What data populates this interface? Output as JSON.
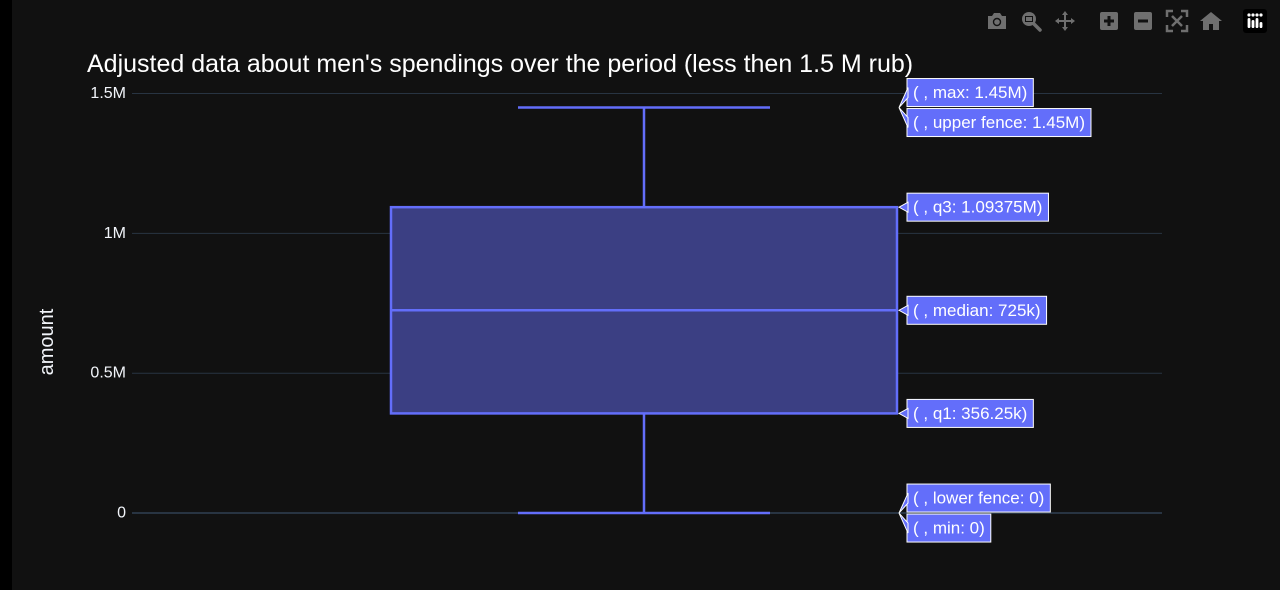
{
  "chart_data": {
    "type": "box",
    "title": "Adjusted data about men's spendings over the period (less then 1.5 M rub)",
    "ylabel": "amount",
    "ylim": [
      -150000,
      1620000
    ],
    "y_ticks": [
      {
        "value": 0,
        "label": "0"
      },
      {
        "value": 500000,
        "label": "0.5M"
      },
      {
        "value": 1000000,
        "label": "1M"
      },
      {
        "value": 1500000,
        "label": "1.5M"
      }
    ],
    "box": {
      "min": 0,
      "lower_fence": 0,
      "q1": 356250,
      "median": 725000,
      "q3": 1093750,
      "upper_fence": 1450000,
      "max": 1450000
    },
    "hover_labels": [
      {
        "key": "max",
        "value": 1450000,
        "text": "( , max: 1.45M)"
      },
      {
        "key": "upper_fence",
        "value": 1450000,
        "text": "( , upper fence: 1.45M)"
      },
      {
        "key": "q3",
        "value": 1093750,
        "text": "( , q3: 1.09375M)"
      },
      {
        "key": "median",
        "value": 725000,
        "text": "( , median: 725k)"
      },
      {
        "key": "q1",
        "value": 356250,
        "text": "( , q1: 356.25k)"
      },
      {
        "key": "lower_fence",
        "value": 0,
        "text": "( , lower fence: 0)"
      },
      {
        "key": "min",
        "value": 0,
        "text": "( , min: 0)"
      }
    ],
    "colors": {
      "box_line": "#636efa",
      "box_fill": "#3b3f83",
      "hover_bg": "#636efa",
      "grid": "#283442",
      "text": "#f2f5fa"
    }
  },
  "modebar": [
    {
      "name": "camera-icon",
      "tooltip": "Download plot as a png"
    },
    {
      "name": "zoom-icon",
      "tooltip": "Zoom"
    },
    {
      "name": "pan-icon",
      "tooltip": "Pan"
    },
    {
      "name": "zoom-in-icon",
      "tooltip": "Zoom in"
    },
    {
      "name": "zoom-out-icon",
      "tooltip": "Zoom out"
    },
    {
      "name": "autoscale-icon",
      "tooltip": "Autoscale"
    },
    {
      "name": "reset-axes-icon",
      "tooltip": "Reset axes"
    },
    {
      "name": "plotly-logo-icon",
      "tooltip": "Produced with Plotly"
    }
  ]
}
